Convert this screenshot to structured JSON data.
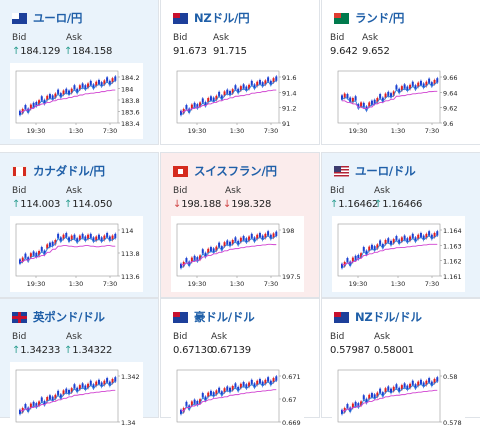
{
  "labels": {
    "bid": "Bid",
    "ask": "Ask"
  },
  "colors": {
    "up_arrow": "#2a9d8f",
    "down_arrow": "#d04545",
    "candle_up": "#1a3fd0",
    "candle_down": "#e02020",
    "ma_fast": "#2e7fd9",
    "ma_slow": "#d040d0"
  },
  "cards": [
    {
      "title": "ユーロ/円",
      "flag": "eu-jp-flag",
      "trend": "up",
      "bid": "184.129",
      "ask": "184.158",
      "bid_arrow": "up",
      "ask_arrow": "up",
      "y_ticks": [
        "184.2",
        "184",
        "183.8",
        "183.6",
        "183.4"
      ],
      "x_ticks": [
        "19:30",
        "1:30",
        "7:30"
      ]
    },
    {
      "title": "NZドル/円",
      "flag": "nz-jp-flag",
      "trend": "flat",
      "bid": "91.673",
      "ask": "91.715",
      "bid_arrow": "none",
      "ask_arrow": "none",
      "y_ticks": [
        "91.6",
        "91.4",
        "91.2",
        "91"
      ],
      "x_ticks": [
        "19:30",
        "1:30",
        "7:30"
      ]
    },
    {
      "title": "ランド/円",
      "flag": "za-jp-flag",
      "trend": "flat",
      "bid": "9.642",
      "ask": "9.652",
      "bid_arrow": "none",
      "ask_arrow": "none",
      "y_ticks": [
        "9.66",
        "9.64",
        "9.62",
        "9.6"
      ],
      "x_ticks": [
        "19:30",
        "1:30",
        "7:30"
      ]
    },
    {
      "title": "カナダドル/円",
      "flag": "ca-jp-flag",
      "trend": "up",
      "bid": "114.003",
      "ask": "114.050",
      "bid_arrow": "up",
      "ask_arrow": "up",
      "y_ticks": [
        "114",
        "113.8",
        "113.6"
      ],
      "x_ticks": [
        "19:30",
        "1:30",
        "7:30"
      ]
    },
    {
      "title": "スイスフラン/円",
      "flag": "ch-jp-flag",
      "trend": "down",
      "bid": "198.188",
      "ask": "198.328",
      "bid_arrow": "down",
      "ask_arrow": "down",
      "y_ticks": [
        "198",
        "197.5"
      ],
      "x_ticks": [
        "19:30",
        "1:30",
        "7:30"
      ]
    },
    {
      "title": "ユーロ/ドル",
      "flag": "eu-us-flag",
      "trend": "up",
      "bid": "1.16462",
      "ask": "1.16466",
      "bid_arrow": "up",
      "ask_arrow": "up",
      "y_ticks": [
        "1.164",
        "1.163",
        "1.162",
        "1.161"
      ],
      "x_ticks": [
        "19:30",
        "1:30",
        "7:30"
      ]
    },
    {
      "title": "英ポンド/ドル",
      "flag": "gb-us-flag",
      "trend": "up",
      "bid": "1.34233",
      "ask": "1.34322",
      "bid_arrow": "up",
      "ask_arrow": "up",
      "y_ticks": [
        "1.342",
        "1.34"
      ],
      "x_ticks": []
    },
    {
      "title": "豪ドル/ドル",
      "flag": "au-us-flag",
      "trend": "flat",
      "bid": "0.67130",
      "ask": "0.67139",
      "bid_arrow": "none",
      "ask_arrow": "none",
      "y_ticks": [
        "0.671",
        "0.67",
        "0.669"
      ],
      "x_ticks": []
    },
    {
      "title": "NZドル/ドル",
      "flag": "nz-us-flag",
      "trend": "flat",
      "bid": "0.57987",
      "ask": "0.58001",
      "bid_arrow": "none",
      "ask_arrow": "none",
      "y_ticks": [
        "0.58",
        "0.578"
      ],
      "x_ticks": []
    }
  ]
}
